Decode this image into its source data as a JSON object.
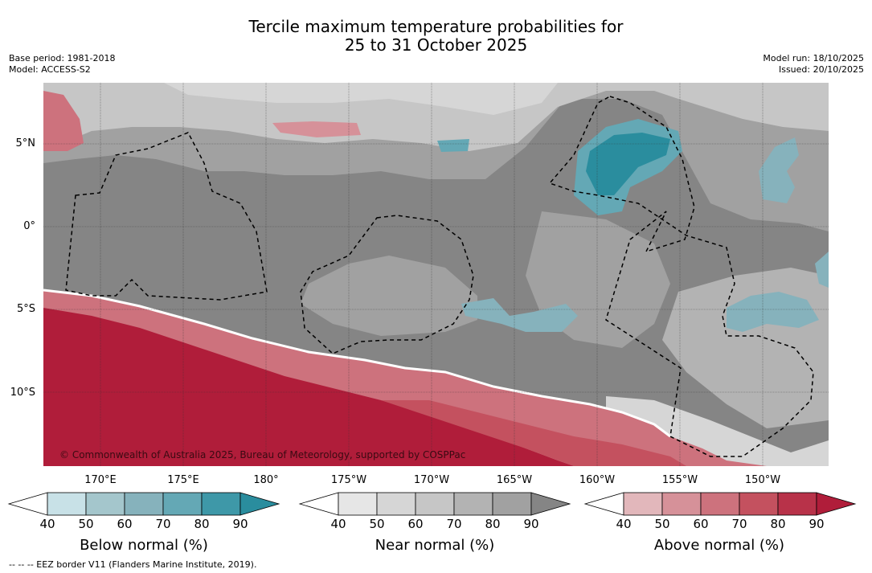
{
  "title": {
    "line1": "Tercile maximum temperature probabilities for",
    "line2": "25 to 31 October 2025"
  },
  "meta": {
    "base_period": "Base period: 1981-2018",
    "model": "Model: ACCESS-S2",
    "model_run": "Model run: 18/10/2025",
    "issued": "Issued: 20/10/2025"
  },
  "map": {
    "lat_labels": [
      "5°N",
      "0°",
      "5°S",
      "10°S"
    ],
    "lon_labels": [
      "170°E",
      "175°E",
      "180°",
      "175°W",
      "170°W",
      "165°W",
      "160°W",
      "155°W",
      "150°W"
    ],
    "copyright": "© Commonwealth of Australia 2025, Bureau of Meteorology, supported by COSPPac",
    "eez_note": "--  --  -- EEZ border V11 (Flanders Marine Institute, 2019)."
  },
  "colorbars": [
    {
      "name": "below",
      "title": "Below normal (%)",
      "ticks": [
        "40",
        "50",
        "60",
        "70",
        "80",
        "90"
      ],
      "colors": [
        "#c8e1e7",
        "#a4c6cc",
        "#86b2bc",
        "#64a8b5",
        "#3e98a8",
        "#2a8d9e"
      ]
    },
    {
      "name": "near",
      "title": "Near normal (%)",
      "ticks": [
        "40",
        "50",
        "60",
        "70",
        "80",
        "90"
      ],
      "colors": [
        "#e6e6e6",
        "#d6d6d6",
        "#c6c6c6",
        "#b3b3b3",
        "#a1a1a1",
        "#858585"
      ]
    },
    {
      "name": "above",
      "title": "Above normal (%)",
      "ticks": [
        "40",
        "50",
        "60",
        "70",
        "80",
        "90"
      ],
      "colors": [
        "#e2b7bb",
        "#d69199",
        "#cd727d",
        "#c4515f",
        "#b83249",
        "#b01d3a"
      ]
    }
  ]
}
